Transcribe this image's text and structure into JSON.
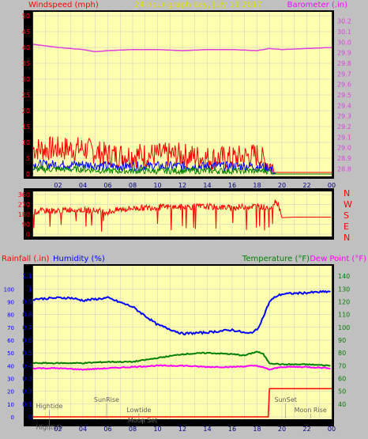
{
  "colors": {
    "background": "#c0c0c0",
    "plot_background": "#ffffb0",
    "grid": "#c8c8c8",
    "wind_speed": "#ff0000",
    "wind_avg": "#0000ff",
    "wind_low": "#008000",
    "barometer": "#e040e0",
    "direction": "#ff0000",
    "humidity": "#0000ff",
    "temperature": "#008000",
    "dew_point": "#ff00ff",
    "rainfall": "#ff0000",
    "title": "#e0e000"
  },
  "header": {
    "title": "24 hour graph day, July 11 2017",
    "left_label": "Windspeed (mph)",
    "right_label": "Barometer (.in)"
  },
  "panel3_header": {
    "rainfall": "Rainfall (.in)",
    "humidity": "Humidity (%)",
    "temperature": "Temperature (°F)",
    "dew_point": "Dew Point (°F)"
  },
  "compass": [
    "N",
    "W",
    "S",
    "E",
    "N"
  ],
  "events": [
    {
      "label": "Hightide",
      "hour": 1.3,
      "row": 0
    },
    {
      "label": "SunRise",
      "hour": 5.9,
      "row": 1
    },
    {
      "label": "Lowtide",
      "hour": 8.5,
      "row": 2
    },
    {
      "label": "Moon Set",
      "hour": 8.8,
      "row": 3
    },
    {
      "label": "SunSet",
      "hour": 20.3,
      "row": 1
    },
    {
      "label": "Moon Rise",
      "hour": 22.3,
      "row": 2
    },
    {
      "label": "Hightide",
      "hour": 1.3,
      "row": 4
    }
  ],
  "chart_data": [
    {
      "type": "line",
      "title": "24 hour graph day, July 11 2017",
      "xlabel": "",
      "x_ticks": [
        "02",
        "04",
        "06",
        "08",
        "10",
        "12",
        "14",
        "16",
        "18",
        "20",
        "22",
        "00"
      ],
      "y_left_label": "Windspeed (mph)",
      "y_left_ticks": [
        0,
        5,
        10,
        15,
        20,
        25,
        30,
        35,
        40,
        45,
        50
      ],
      "y_left_lim": [
        0,
        50
      ],
      "y_right_label": "Barometer (.in)",
      "y_right_ticks": [
        28.8,
        28.9,
        29.0,
        29.1,
        29.2,
        29.3,
        29.4,
        29.5,
        29.6,
        29.7,
        29.8,
        29.9,
        30.0,
        30.1,
        30.2
      ],
      "y_right_lim": [
        28.75,
        30.25
      ],
      "series": [
        {
          "axis": "right",
          "hours": [
            0,
            2,
            4,
            5,
            6,
            8,
            10,
            12,
            14,
            16,
            18,
            19,
            20,
            22,
            24
          ],
          "values": [
            29.98,
            29.95,
            29.93,
            29.91,
            29.92,
            29.93,
            29.93,
            29.92,
            29.93,
            29.93,
            29.92,
            29.94,
            29.93,
            29.94,
            29.95
          ]
        },
        {
          "axis": "left",
          "hours": [
            0,
            2,
            4,
            6,
            8,
            10,
            12,
            14,
            16,
            18,
            19,
            19.5,
            20,
            22,
            24
          ],
          "values": [
            8,
            8,
            8,
            6,
            6,
            6,
            6,
            5,
            5,
            6,
            3,
            0.5,
            0.5,
            0.5,
            0.5
          ],
          "noise": 4
        },
        {
          "axis": "left",
          "hours": [
            0,
            2,
            4,
            6,
            8,
            10,
            12,
            14,
            16,
            18,
            19,
            19.5,
            24
          ],
          "values": [
            3,
            3,
            3,
            2.5,
            2.5,
            2.5,
            2.5,
            2.5,
            2.5,
            2.5,
            2,
            0,
            0
          ],
          "noise": 1.5
        },
        {
          "axis": "left",
          "hours": [
            0,
            2,
            4,
            6,
            8,
            10,
            12,
            14,
            16,
            18,
            19,
            19.5,
            24
          ],
          "values": [
            1.5,
            1.5,
            1.5,
            1,
            1,
            1,
            1,
            1,
            1,
            1,
            1,
            0,
            0
          ],
          "noise": 1
        }
      ]
    },
    {
      "type": "scatter",
      "title": "",
      "xlabel": "",
      "y_ticks": [
        0,
        90,
        180,
        270,
        360
      ],
      "ylim": [
        0,
        360
      ],
      "series": [
        {
          "hours": [
            0,
            1,
            2,
            3,
            4,
            5,
            6,
            7,
            8,
            9,
            10,
            11,
            12,
            13,
            14,
            15,
            16,
            17,
            18,
            19,
            19.5,
            19.7,
            20,
            21,
            22,
            23,
            24
          ],
          "values": [
            200,
            215,
            210,
            225,
            220,
            215,
            200,
            225,
            235,
            240,
            245,
            248,
            245,
            250,
            250,
            245,
            240,
            250,
            255,
            240,
            300,
            280,
            150,
            155,
            155,
            155,
            155
          ],
          "noise": 28
        }
      ]
    },
    {
      "type": "line",
      "title": "",
      "xlabel": "",
      "y_left_label": "Rainfall (.in)",
      "y_left_ticks": [
        0,
        0.1,
        0.2,
        0.3,
        0.4,
        0.5,
        0.6,
        0.7,
        0.8,
        0.9,
        1,
        1.1
      ],
      "y_left_lim": [
        0,
        1.15
      ],
      "y_outer_ticks": [
        0,
        10,
        20,
        30,
        40,
        50,
        60,
        70,
        80,
        90,
        100
      ],
      "y_outer_lim": [
        0,
        115
      ],
      "y_right_ticks": [
        40,
        50,
        60,
        70,
        80,
        90,
        100,
        110,
        120,
        130,
        140
      ],
      "y_right_lim": [
        30,
        145
      ],
      "series": [
        {
          "name": "Humidity (%)",
          "axis": "outer",
          "hours": [
            0,
            2,
            3,
            4,
            6,
            8,
            10,
            12,
            14,
            16,
            17.3,
            18,
            18.5,
            19,
            19.5,
            20,
            22,
            24
          ],
          "values": [
            92,
            93,
            93,
            91,
            93,
            86,
            72,
            65,
            66,
            68,
            65,
            68,
            78,
            90,
            94,
            96,
            97,
            98
          ]
        },
        {
          "name": "Temperature (°F)",
          "axis": "right",
          "hours": [
            0,
            2,
            4,
            6,
            8,
            10,
            12,
            14,
            16,
            17,
            18,
            18.5,
            19,
            20,
            22,
            24
          ],
          "values": [
            72,
            72,
            72,
            73,
            73,
            76,
            79,
            80,
            79,
            78,
            81,
            79,
            72,
            71,
            71,
            70
          ]
        },
        {
          "name": "Dew Point (°F)",
          "axis": "right",
          "hours": [
            0,
            2,
            4,
            6,
            8,
            10,
            12,
            14,
            16,
            18,
            19,
            20,
            22,
            24
          ],
          "values": [
            68,
            68,
            67,
            68,
            69,
            70,
            70,
            69,
            69,
            70,
            67,
            69,
            69,
            68
          ]
        },
        {
          "name": "Rainfall (.in)",
          "axis": "left",
          "hours": [
            0,
            18.9,
            19,
            24
          ],
          "values": [
            0,
            0,
            0.22,
            0.22
          ]
        }
      ]
    }
  ]
}
